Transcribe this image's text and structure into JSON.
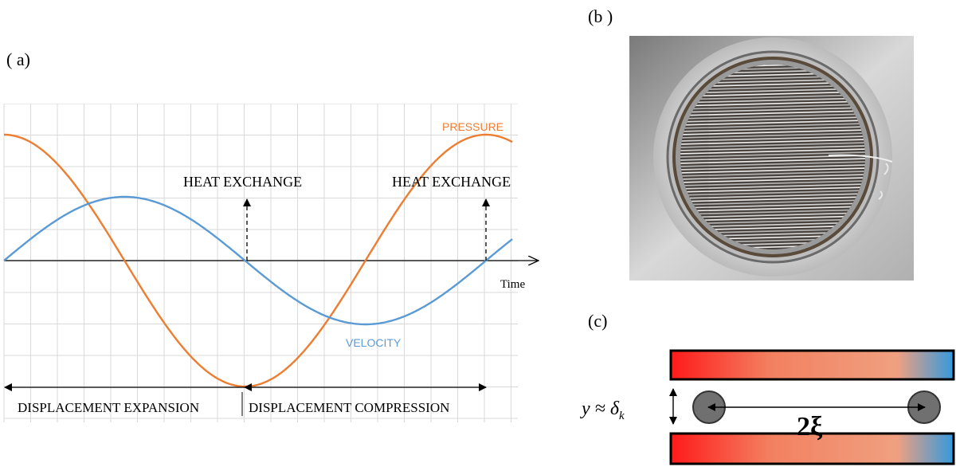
{
  "panels": {
    "a": {
      "label": "( a)"
    },
    "b": {
      "label": "(b )"
    },
    "c": {
      "label": "(c)"
    }
  },
  "figure_a": {
    "x_axis_label": "Time",
    "curves": {
      "pressure": {
        "label": "PRESSURE",
        "color": "#ED7D31"
      },
      "velocity": {
        "label": "VELOCITY",
        "color": "#5B9BD5"
      }
    },
    "annotations": {
      "heat_exchange_1": "HEAT EXCHANGE",
      "heat_exchange_2": "HEAT EXCHANGE",
      "displacement_expansion": "DISPLACEMENT EXPANSION",
      "displacement_compression": "DISPLACEMENT COMPRESSION"
    },
    "grid": true,
    "grid_color": "#D9D9D9"
  },
  "figure_b": {
    "content": "photograph",
    "depicts": "circular-heat-exchanger-plate-stack"
  },
  "figure_c": {
    "formula_left": "y ≈ δ",
    "formula_sub": "k",
    "formula_right": "2ξ",
    "plate_gradient": [
      "#FF1A1A",
      "#F28060",
      "#F0A080",
      "#3399DD"
    ],
    "particle_color": "#707070"
  }
}
